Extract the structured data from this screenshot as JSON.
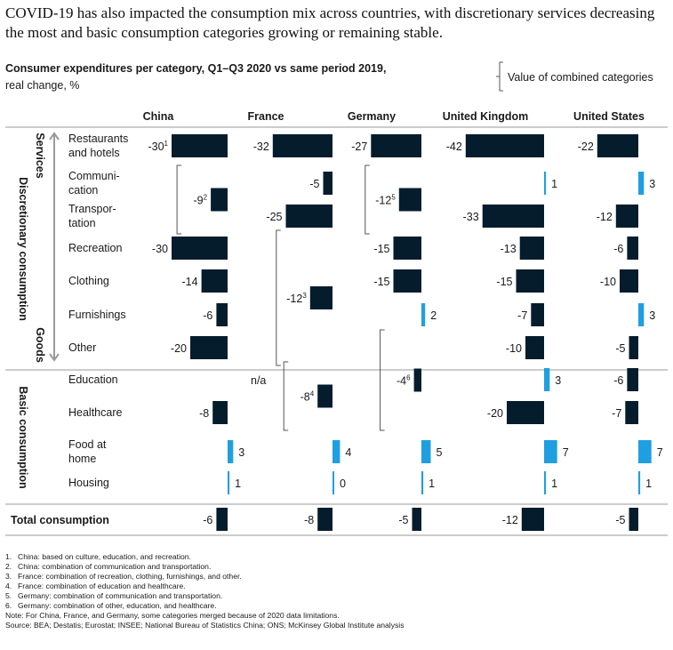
{
  "headline": "COVID-19 has also impacted the consumption mix across countries, with discretionary services decreasing the most and basic consumption categories growing or remaining stable.",
  "subtitle": "Consumer expenditures per category, Q1–Q3 2020 vs same period 2019,",
  "units": "real change, %",
  "legend_label": "Value of combined categories",
  "colors": {
    "negative": "#051c2c",
    "positive": "#1f9fe0",
    "rule": "#9a9a9a",
    "bracket": "#555555"
  },
  "groups": {
    "discretionary": "Discretionary consumption",
    "basic": "Basic consumption",
    "services": "Services",
    "goods": "Goods"
  },
  "chart_data": {
    "type": "bar",
    "orientation": "horizontal",
    "countries": [
      "China",
      "France",
      "Germany",
      "United Kingdom",
      "United States"
    ],
    "categories": [
      "Restaurants and hotels",
      "Communi-cation",
      "Transpor-tation",
      "Recreation",
      "Clothing",
      "Furnishings",
      "Other",
      "Education",
      "Healthcare",
      "Food at home",
      "Housing"
    ],
    "category_lines": [
      [
        "Restaurants",
        "and hotels"
      ],
      [
        "Communi-",
        "cation"
      ],
      [
        "Transpor-",
        "tation"
      ],
      [
        "Recreation"
      ],
      [
        "Clothing"
      ],
      [
        "Furnishings"
      ],
      [
        "Other"
      ],
      [
        "Education"
      ],
      [
        "Healthcare"
      ],
      [
        "Food at",
        "home"
      ],
      [
        "Housing"
      ]
    ],
    "values": {
      "China": [
        -30,
        null,
        null,
        -30,
        -14,
        -6,
        -20,
        null,
        -8,
        3,
        1
      ],
      "France": [
        -32,
        -5,
        -25,
        null,
        null,
        null,
        null,
        null,
        null,
        4,
        0
      ],
      "Germany": [
        -27,
        null,
        null,
        -15,
        -15,
        2,
        null,
        null,
        null,
        5,
        1
      ],
      "United Kingdom": [
        -42,
        1,
        -33,
        -13,
        -15,
        -7,
        -10,
        3,
        -20,
        7,
        1
      ],
      "United States": [
        -22,
        3,
        -12,
        -6,
        -10,
        3,
        -5,
        -6,
        -7,
        7,
        1
      ]
    },
    "combined": [
      {
        "country": "China",
        "from": 1,
        "to": 2,
        "value": -9,
        "footnote": "2"
      },
      {
        "country": "China",
        "from": 0,
        "to": 0,
        "value": -30,
        "footnote": "1"
      },
      {
        "country": "France",
        "from": 3,
        "to": 6,
        "value": -12,
        "footnote": "3"
      },
      {
        "country": "France",
        "from": 7,
        "to": 8,
        "value": -8,
        "footnote": "4"
      },
      {
        "country": "Germany",
        "from": 1,
        "to": 2,
        "value": -12,
        "footnote": "5"
      },
      {
        "country": "Germany",
        "from": 6,
        "to": 8,
        "value": -4,
        "footnote": "6"
      }
    ],
    "na": [
      {
        "country": "France",
        "category": 7,
        "text": "n/a"
      }
    ],
    "total_label": "Total consumption",
    "total": {
      "China": -6,
      "France": -8,
      "Germany": -5,
      "United Kingdom": -12,
      "United States": -5
    }
  },
  "footnotes": [
    {
      "num": "1.",
      "text": "China: based on culture, education, and recreation."
    },
    {
      "num": "2.",
      "text": "China: combination of communication and transportation."
    },
    {
      "num": "3.",
      "text": "France: combination of recreation, clothing, furnishings, and other."
    },
    {
      "num": "4.",
      "text": "France: combination of education and healthcare."
    },
    {
      "num": "5.",
      "text": "Germany: combination of communication and transportation."
    },
    {
      "num": "6.",
      "text": "Germany: combination of other, education, and healthcare."
    }
  ],
  "note": "Note: For China, France, and Germany, some categories merged because of 2020 data limitations.",
  "source": "Source: BEA; Destatis; Eurostat; INSEE; National Bureau of Statistics China; ONS; McKinsey Global Institute analysis"
}
